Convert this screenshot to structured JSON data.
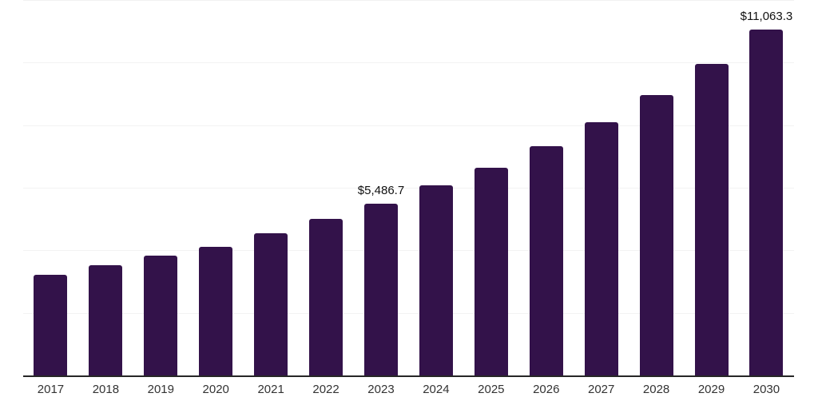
{
  "chart_data": {
    "type": "bar",
    "title": "",
    "xlabel": "",
    "ylabel": "",
    "categories": [
      "2017",
      "2018",
      "2019",
      "2020",
      "2021",
      "2022",
      "2023",
      "2024",
      "2025",
      "2026",
      "2027",
      "2028",
      "2029",
      "2030"
    ],
    "values": [
      3210,
      3520,
      3830,
      4100,
      4540,
      5000,
      5486.7,
      6070,
      6650,
      7320,
      8100,
      8970,
      9970,
      11063.3
    ],
    "data_labels": [
      "",
      "",
      "",
      "",
      "",
      "",
      "$5,486.7",
      "",
      "",
      "",
      "",
      "",
      "",
      "$11,063.3"
    ],
    "ylim": [
      0,
      12000
    ],
    "gridline_interval": 2000,
    "grid": true,
    "legend": false,
    "y_axis_tick_labels_visible": false,
    "colors": {
      "bar": "#33124A",
      "gridline": "#F2F2F2",
      "axis_line": "#262626",
      "axis_label_text": "#333333",
      "data_label_text": "#111111",
      "background": "#FFFFFF"
    }
  }
}
